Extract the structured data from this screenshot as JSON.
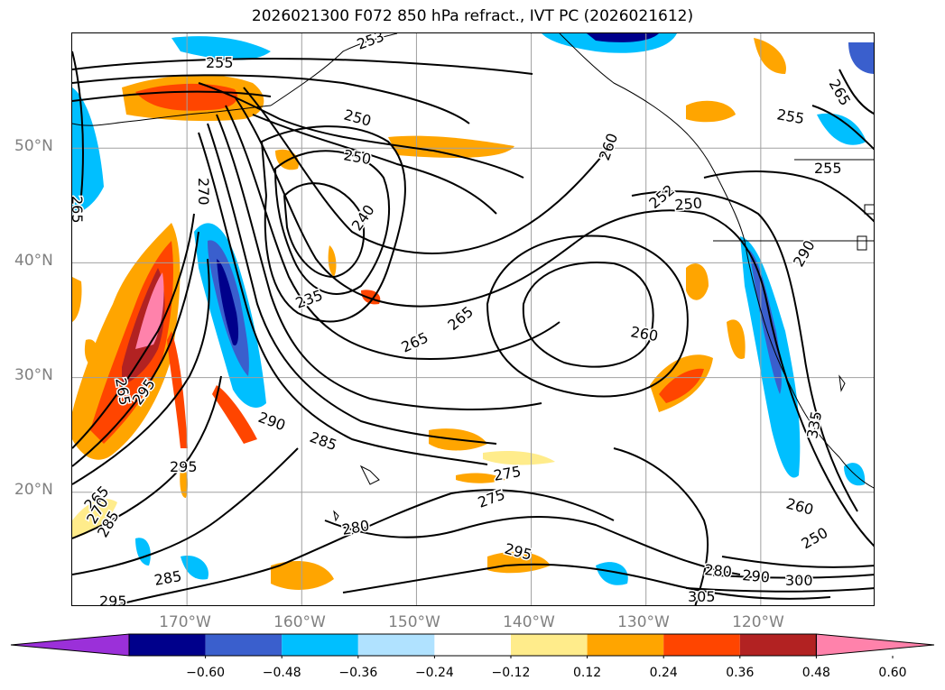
{
  "title": "2026021300 F072 850 hPa refract., IVT PC (2026021612)",
  "lat_labels": [
    "50°N",
    "40°N",
    "30°N",
    "20°N"
  ],
  "lon_labels": [
    "170°W",
    "160°W",
    "150°W",
    "140°W",
    "130°W",
    "120°W"
  ],
  "contour_labels": [
    "255",
    "253",
    "265",
    "250",
    "250",
    "270",
    "240",
    "235",
    "265",
    "260",
    "265",
    "260",
    "255",
    "252",
    "250",
    "255",
    "265",
    "290",
    "285",
    "295",
    "275",
    "275",
    "280",
    "295",
    "285",
    "295",
    "280",
    "290",
    "300",
    "305",
    "260",
    "250",
    "335",
    "265",
    "270",
    "295",
    "285",
    "265",
    "290"
  ],
  "colorbar": {
    "colors": [
      "#9b30d9",
      "#00008b",
      "#3a5fcd",
      "#00bfff",
      "#b0e2ff",
      "#ffffff",
      "#ffec8b",
      "#ffa500",
      "#ff4500",
      "#b22222",
      "#ff82ab"
    ],
    "ticks": [
      "−0.60",
      "−0.48",
      "−0.36",
      "−0.24",
      "−0.12",
      "0.12",
      "0.24",
      "0.36",
      "0.48",
      "0.60"
    ]
  },
  "map_extent": {
    "lon_min": -180,
    "lon_max": -110,
    "lat_min": 10,
    "lat_max": 60
  },
  "graticule": {
    "lons": [
      -170,
      -160,
      -150,
      -140,
      -130,
      -120
    ],
    "lats": [
      20,
      30,
      40,
      50
    ]
  }
}
